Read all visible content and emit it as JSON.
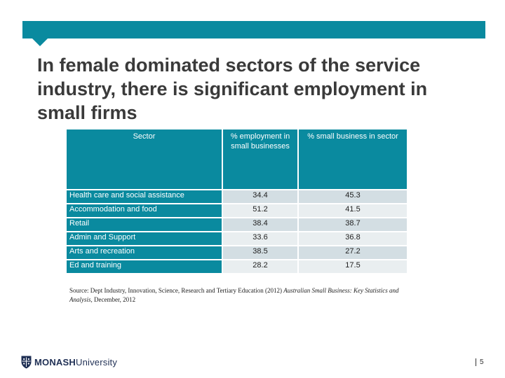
{
  "slide": {
    "title": "In female dominated sectors of the service industry, there is significant employment in small firms",
    "page_number": "5"
  },
  "table": {
    "headers": [
      "Sector",
      "% employment in small businesses",
      "% small business in sector"
    ],
    "rows": [
      {
        "sector": "Health care and social assistance",
        "employment": "34.4",
        "share": "45.3"
      },
      {
        "sector": "Accommodation and food",
        "employment": "51.2",
        "share": "41.5"
      },
      {
        "sector": "Retail",
        "employment": "38.4",
        "share": "38.7"
      },
      {
        "sector": "Admin and Support",
        "employment": "33.6",
        "share": "36.8"
      },
      {
        "sector": "Arts and recreation",
        "employment": "38.5",
        "share": "27.2"
      },
      {
        "sector": "Ed and training",
        "employment": "28.2",
        "share": "17.5"
      }
    ]
  },
  "source": {
    "prefix": "Source: Dept Industry, Innovation, Science, Research and Tertiary Education (2012) ",
    "title_italic": "Australian Small Business: Key Statistics and Analysis",
    "suffix": ", December, 2012"
  },
  "logo": {
    "bold": "MONASH",
    "regular": "University"
  },
  "colors": {
    "accent": "#0a8a9f",
    "row_dark": "#d3dee3",
    "row_light": "#e9eef0"
  }
}
